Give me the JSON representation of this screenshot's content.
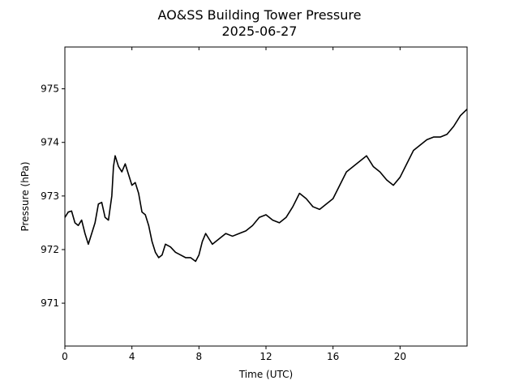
{
  "chart_data": {
    "type": "line",
    "title": "AO&SS Building Tower Pressure",
    "subtitle": "2025-06-27",
    "xlabel": "Time (UTC)",
    "ylabel": "Pressure (hPa)",
    "xlim": [
      0,
      24
    ],
    "ylim": [
      970.2,
      975.78
    ],
    "xticks": [
      0,
      4,
      8,
      12,
      16,
      20
    ],
    "xtick_labels": [
      "0",
      "4",
      "8",
      "12",
      "16",
      "20"
    ],
    "yticks": [
      971,
      972,
      973,
      974,
      975
    ],
    "ytick_labels": [
      "971",
      "972",
      "973",
      "974",
      "975"
    ],
    "grid": false,
    "line_color": "#000000",
    "series": [
      {
        "x": [
          0,
          0.2,
          0.4,
          0.6,
          0.8,
          1.0,
          1.2,
          1.4,
          1.6,
          1.8,
          2.0,
          2.2,
          2.4,
          2.6,
          2.8,
          2.9,
          3.0,
          3.2,
          3.4,
          3.6,
          3.8,
          4.0,
          4.2,
          4.4,
          4.6,
          4.8,
          5.0,
          5.2,
          5.4,
          5.6,
          5.8,
          6.0,
          6.3,
          6.6,
          6.9,
          7.2,
          7.5,
          7.8,
          8.0,
          8.2,
          8.4,
          8.6,
          8.8,
          9.2,
          9.6,
          10.0,
          10.4,
          10.8,
          11.2,
          11.6,
          12.0,
          12.4,
          12.8,
          13.2,
          13.6,
          14.0,
          14.4,
          14.8,
          15.2,
          15.6,
          16.0,
          16.4,
          16.8,
          17.2,
          17.6,
          18.0,
          18.4,
          18.8,
          19.2,
          19.6,
          20.0,
          20.4,
          20.8,
          21.2,
          21.6,
          22.0,
          22.4,
          22.8,
          23.2,
          23.6,
          24.0
        ],
        "y": [
          972.6,
          972.7,
          972.72,
          972.5,
          972.45,
          972.55,
          972.3,
          972.1,
          972.3,
          972.5,
          972.85,
          972.88,
          972.6,
          972.55,
          973.0,
          973.55,
          973.75,
          973.55,
          973.45,
          973.6,
          973.4,
          973.2,
          973.25,
          973.05,
          972.7,
          972.65,
          972.45,
          972.15,
          971.95,
          971.85,
          971.9,
          972.1,
          972.05,
          971.95,
          971.9,
          971.85,
          971.85,
          971.78,
          971.9,
          972.15,
          972.3,
          972.2,
          972.1,
          972.2,
          972.3,
          972.25,
          972.3,
          972.35,
          972.45,
          972.6,
          972.65,
          972.55,
          972.5,
          972.6,
          972.8,
          973.05,
          972.95,
          972.8,
          972.75,
          972.85,
          972.95,
          973.2,
          973.45,
          973.55,
          973.65,
          973.75,
          973.55,
          973.45,
          973.3,
          973.2,
          973.35,
          973.6,
          973.85,
          973.95,
          974.05,
          974.1,
          974.1,
          974.15,
          974.3,
          974.5,
          974.62
        ]
      }
    ]
  }
}
